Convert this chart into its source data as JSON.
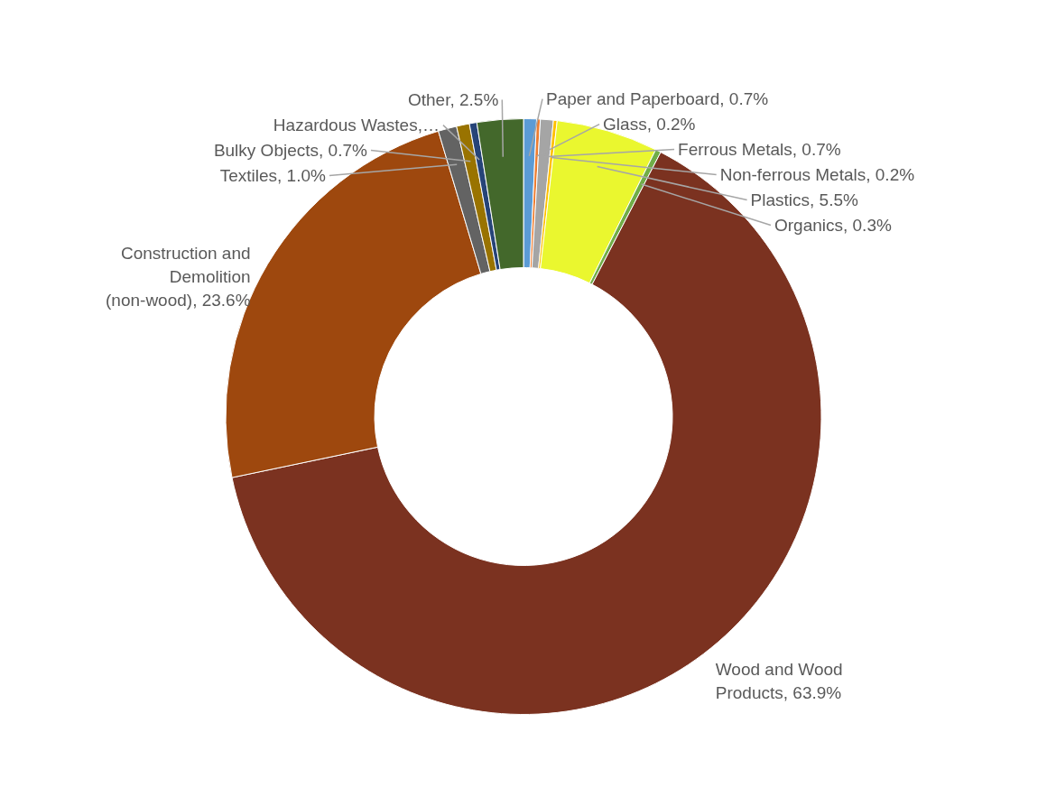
{
  "chart_data": {
    "type": "donut",
    "categories": [
      "Paper and Paperboard",
      "Glass",
      "Ferrous Metals",
      "Non-ferrous Metals",
      "Plastics",
      "Organics",
      "Wood and Wood Products",
      "Construction and Demolition (non-wood)",
      "Textiles",
      "Bulky Objects",
      "Hazardous Wastes,…",
      "Other"
    ],
    "values": [
      0.7,
      0.2,
      0.7,
      0.2,
      5.5,
      0.3,
      63.9,
      23.6,
      1.0,
      0.7,
      0.4,
      2.5
    ],
    "value_labels": [
      "0.7%",
      "0.2%",
      "0.7%",
      "0.2%",
      "5.5%",
      "0.3%",
      "63.9%",
      "23.6%",
      "1.0%",
      "0.7%",
      null,
      "2.5%"
    ],
    "colors": [
      "#5b9bd5",
      "#ed7d31",
      "#a5a5a5",
      "#ffc000",
      "#eaf72f",
      "#70ad47",
      "#7b3220",
      "#9e480e",
      "#636363",
      "#997300",
      "#264478",
      "#43682b"
    ],
    "legend": false
  }
}
